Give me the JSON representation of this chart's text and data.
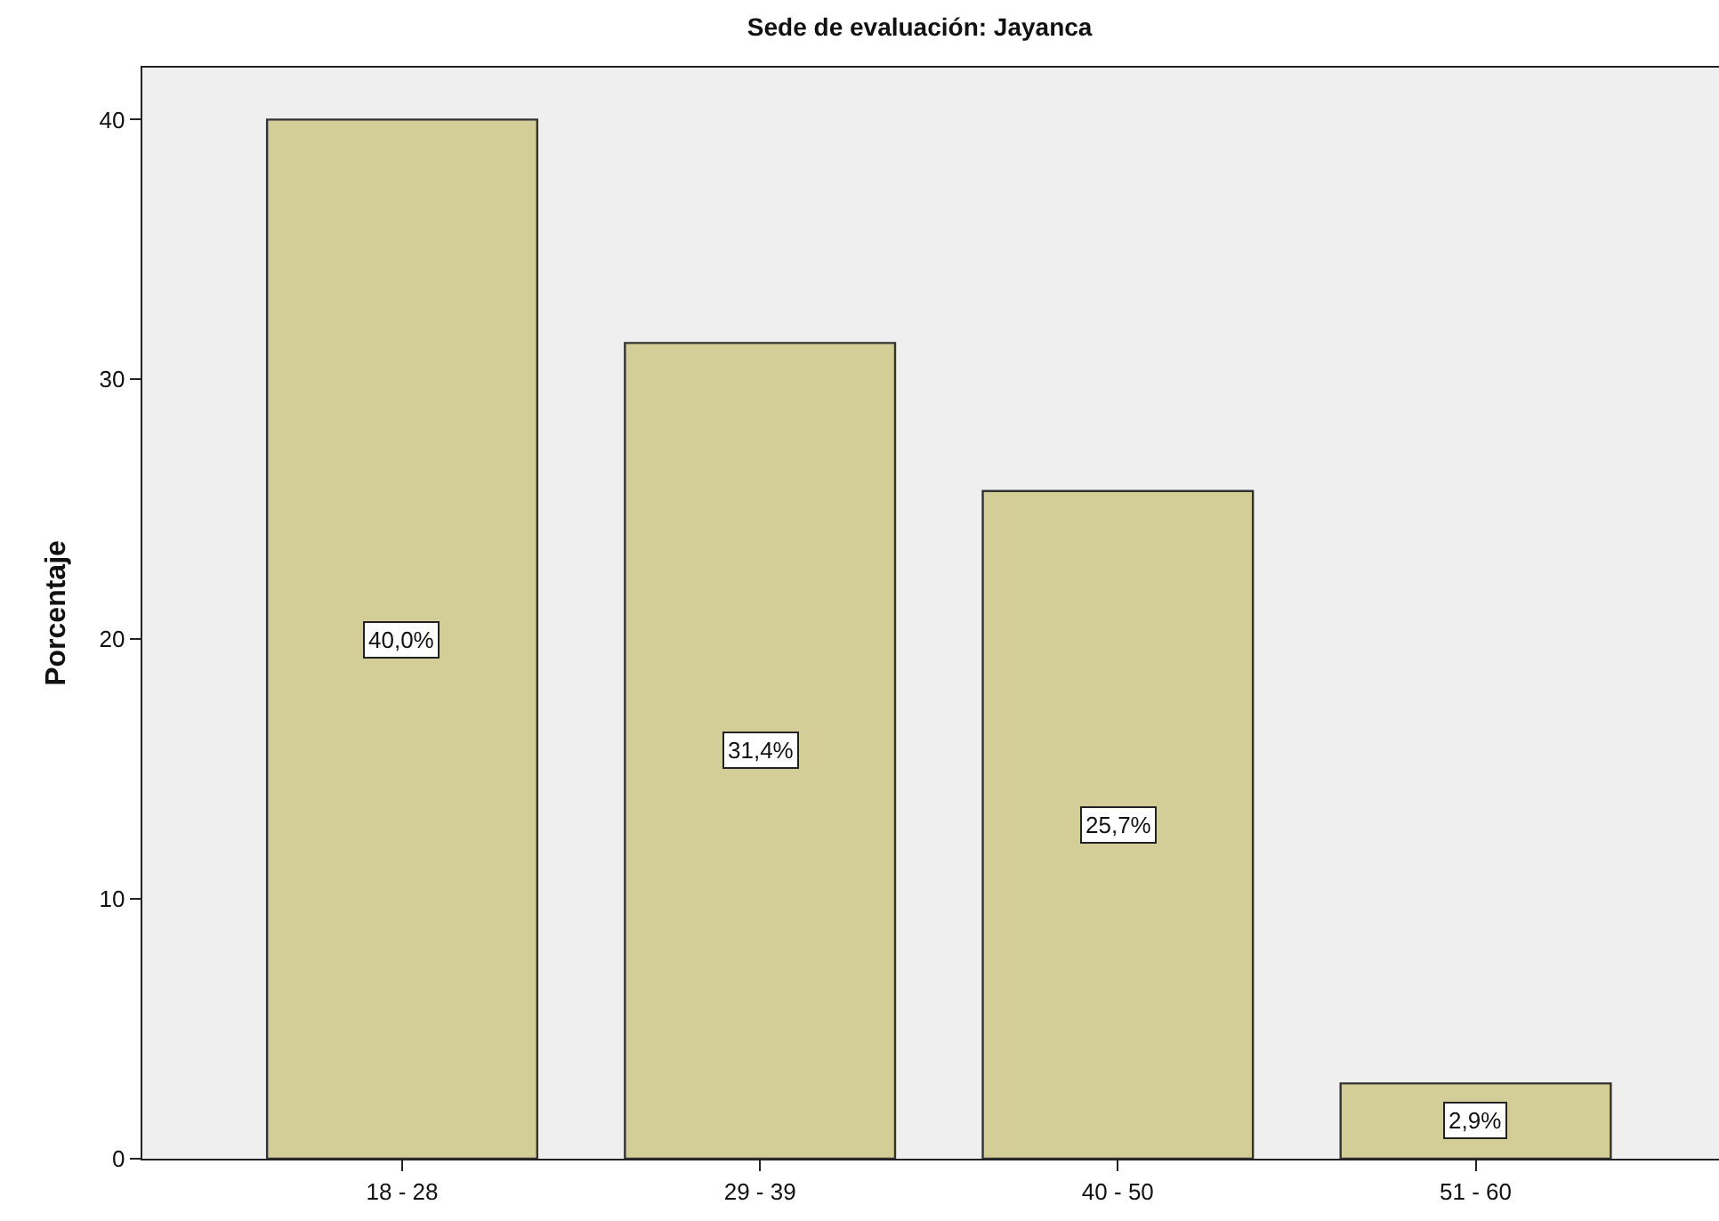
{
  "chart_data": {
    "type": "bar",
    "title": "Sede de evaluación: Jayanca",
    "ylabel": "Porcentaje",
    "categories": [
      "18 - 28",
      "29 - 39",
      "40 - 50",
      "51 - 60"
    ],
    "values": [
      40.0,
      31.4,
      25.7,
      2.9
    ],
    "color": "#d3ce97",
    "value_labels": [
      "40,0%",
      "31,4%",
      "25,7%",
      "2,9%"
    ],
    "ylim": [
      0,
      42
    ],
    "yticks": [
      0,
      10,
      20,
      30,
      40
    ]
  }
}
